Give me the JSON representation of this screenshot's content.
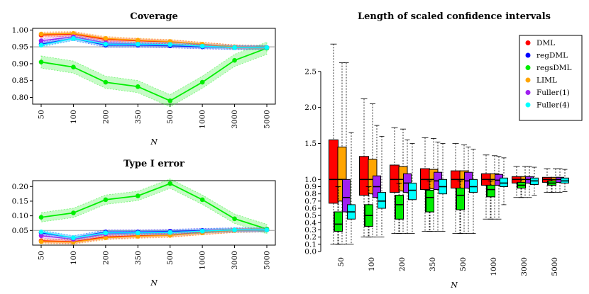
{
  "chart_data": [
    {
      "type": "line",
      "title": "Coverage",
      "xlabel": "N",
      "x": [
        "50",
        "100",
        "200",
        "350",
        "500",
        "1000",
        "3000",
        "5000"
      ],
      "ylim": [
        0.78,
        1.005
      ],
      "yticks": [
        "0.80",
        "0.85",
        "0.90",
        "0.95",
        "1.00"
      ],
      "reference_line": 0.95,
      "series": [
        {
          "color": "#ff0000",
          "values": [
            0.985,
            0.988,
            0.972,
            0.968,
            0.965,
            0.957,
            0.95,
            0.948
          ]
        },
        {
          "color": "#0000ff",
          "values": [
            0.958,
            0.975,
            0.955,
            0.955,
            0.953,
            0.95,
            0.948,
            0.948
          ]
        },
        {
          "color": "#00ee00",
          "values": [
            0.905,
            0.89,
            0.845,
            0.832,
            0.79,
            0.845,
            0.91,
            0.946
          ]
        },
        {
          "color": "#ffa500",
          "values": [
            0.988,
            0.99,
            0.975,
            0.97,
            0.966,
            0.958,
            0.95,
            0.948
          ]
        },
        {
          "color": "#a020f0",
          "values": [
            0.968,
            0.98,
            0.962,
            0.958,
            0.957,
            0.952,
            0.948,
            0.948
          ]
        },
        {
          "color": "#00ffff",
          "values": [
            0.955,
            0.975,
            0.958,
            0.958,
            0.957,
            0.952,
            0.948,
            0.948
          ]
        }
      ]
    },
    {
      "type": "line",
      "title": "Type I error",
      "xlabel": "N",
      "x": [
        "50",
        "100",
        "200",
        "350",
        "500",
        "1000",
        "3000",
        "5000"
      ],
      "ylim": [
        0.0,
        0.22
      ],
      "yticks": [
        "0.05",
        "0.10",
        "0.15",
        "0.20"
      ],
      "reference_line": 0.05,
      "series": [
        {
          "color": "#ff0000",
          "values": [
            0.015,
            0.012,
            0.028,
            0.032,
            0.035,
            0.043,
            0.05,
            0.052
          ]
        },
        {
          "color": "#0000ff",
          "values": [
            0.042,
            0.025,
            0.045,
            0.045,
            0.047,
            0.05,
            0.052,
            0.052
          ]
        },
        {
          "color": "#00ee00",
          "values": [
            0.095,
            0.11,
            0.155,
            0.168,
            0.21,
            0.155,
            0.09,
            0.055
          ]
        },
        {
          "color": "#ffa500",
          "values": [
            0.012,
            0.01,
            0.025,
            0.03,
            0.033,
            0.042,
            0.05,
            0.052
          ]
        },
        {
          "color": "#a020f0",
          "values": [
            0.032,
            0.02,
            0.038,
            0.042,
            0.043,
            0.048,
            0.052,
            0.052
          ]
        },
        {
          "color": "#00ffff",
          "values": [
            0.045,
            0.025,
            0.042,
            0.042,
            0.043,
            0.048,
            0.052,
            0.052
          ]
        }
      ]
    },
    {
      "type": "box",
      "title": "Length of scaled confidence intervals",
      "xlabel": "N",
      "categories": [
        "50",
        "100",
        "200",
        "350",
        "500",
        "1000",
        "3000",
        "5000"
      ],
      "ylim": [
        0.0,
        3.0
      ],
      "yticks_major": [
        "0.0",
        "0.1",
        "0.2",
        "0.3",
        "0.4",
        "0.5",
        "0.6",
        "0.7",
        "0.8",
        "0.9",
        "1.0",
        "1.5",
        "2.0",
        "2.5"
      ],
      "legend": {
        "position": "top-right",
        "entries": [
          {
            "label": "DML",
            "color": "#ff0000"
          },
          {
            "label": "regDML",
            "color": "#0000ff"
          },
          {
            "label": "regsDML",
            "color": "#00ee00"
          },
          {
            "label": "LIML",
            "color": "#ffa500"
          },
          {
            "label": "Fuller(1)",
            "color": "#a020f0"
          },
          {
            "label": "Fuller(4)",
            "color": "#00ffff"
          }
        ]
      },
      "series_order": [
        "DML",
        "LIML",
        "regDML",
        "regsDML",
        "Fuller(1)",
        "Fuller(4)"
      ],
      "boxes": [
        {
          "N": "50",
          "stats": {
            "DML": [
              0.1,
              0.67,
              1.0,
              1.55,
              2.88
            ],
            "LIML": [
              0.1,
              0.7,
              1.0,
              1.45,
              2.62
            ],
            "regDML": [
              0.1,
              0.28,
              0.38,
              0.55,
              0.9
            ],
            "regsDML": [
              0.1,
              0.28,
              0.38,
              0.55,
              0.9
            ],
            "Fuller(1)": [
              0.1,
              0.55,
              0.75,
              1.0,
              2.62
            ],
            "Fuller(4)": [
              0.1,
              0.45,
              0.55,
              0.65,
              1.65
            ]
          }
        },
        {
          "N": "100",
          "stats": {
            "DML": [
              0.2,
              0.78,
              1.0,
              1.32,
              2.12
            ],
            "LIML": [
              0.2,
              0.8,
              1.0,
              1.28,
              2.05
            ],
            "regDML": [
              0.2,
              0.35,
              0.5,
              0.65,
              0.9
            ],
            "regsDML": [
              0.2,
              0.35,
              0.5,
              0.65,
              0.9
            ],
            "Fuller(1)": [
              0.2,
              0.75,
              0.9,
              1.05,
              1.75
            ],
            "Fuller(4)": [
              0.2,
              0.6,
              0.7,
              0.82,
              1.6
            ]
          }
        },
        {
          "N": "200",
          "stats": {
            "DML": [
              0.25,
              0.82,
              1.0,
              1.2,
              1.72
            ],
            "LIML": [
              0.25,
              0.84,
              1.0,
              1.18,
              1.7
            ],
            "regDML": [
              0.25,
              0.45,
              0.65,
              0.78,
              0.95
            ],
            "regsDML": [
              0.25,
              0.45,
              0.65,
              0.78,
              0.95
            ],
            "Fuller(1)": [
              0.25,
              0.82,
              0.95,
              1.08,
              1.55
            ],
            "Fuller(4)": [
              0.25,
              0.72,
              0.85,
              0.95,
              1.5
            ]
          }
        },
        {
          "N": "350",
          "stats": {
            "DML": [
              0.28,
              0.86,
              1.0,
              1.15,
              1.58
            ],
            "LIML": [
              0.28,
              0.87,
              1.0,
              1.14,
              1.57
            ],
            "regDML": [
              0.28,
              0.55,
              0.75,
              0.85,
              0.98
            ],
            "regsDML": [
              0.28,
              0.55,
              0.75,
              0.85,
              0.98
            ],
            "Fuller(1)": [
              0.28,
              0.86,
              0.98,
              1.1,
              1.52
            ],
            "Fuller(4)": [
              0.28,
              0.8,
              0.9,
              1.0,
              1.5
            ]
          }
        },
        {
          "N": "500",
          "stats": {
            "DML": [
              0.25,
              0.88,
              1.0,
              1.12,
              1.5
            ],
            "LIML": [
              0.25,
              0.88,
              1.0,
              1.12,
              1.48
            ],
            "regDML": [
              0.25,
              0.58,
              0.78,
              0.88,
              0.98
            ],
            "regsDML": [
              0.25,
              0.58,
              0.78,
              0.88,
              0.98
            ],
            "Fuller(1)": [
              0.25,
              0.88,
              0.98,
              1.1,
              1.45
            ],
            "Fuller(4)": [
              0.25,
              0.82,
              0.9,
              1.0,
              1.42
            ]
          }
        },
        {
          "N": "1000",
          "stats": {
            "DML": [
              0.45,
              0.92,
              1.0,
              1.08,
              1.34
            ],
            "LIML": [
              0.45,
              0.92,
              1.0,
              1.08,
              1.33
            ],
            "regDML": [
              0.45,
              0.76,
              0.86,
              0.92,
              0.98
            ],
            "regsDML": [
              0.45,
              0.76,
              0.86,
              0.92,
              0.98
            ],
            "Fuller(1)": [
              0.45,
              0.92,
              0.99,
              1.07,
              1.32
            ],
            "Fuller(4)": [
              0.65,
              0.9,
              0.95,
              1.02,
              1.3
            ]
          }
        },
        {
          "N": "3000",
          "stats": {
            "DML": [
              0.75,
              0.95,
              1.0,
              1.04,
              1.18
            ],
            "LIML": [
              0.75,
              0.95,
              1.0,
              1.04,
              1.18
            ],
            "regDML": [
              0.75,
              0.88,
              0.92,
              0.96,
              1.0
            ],
            "regsDML": [
              0.75,
              0.88,
              0.92,
              0.96,
              1.0
            ],
            "Fuller(1)": [
              0.75,
              0.95,
              1.0,
              1.04,
              1.18
            ],
            "Fuller(4)": [
              0.78,
              0.93,
              0.98,
              1.02,
              1.17
            ]
          }
        },
        {
          "N": "5000",
          "stats": {
            "DML": [
              0.82,
              0.96,
              1.0,
              1.03,
              1.15
            ],
            "LIML": [
              0.82,
              0.96,
              1.0,
              1.03,
              1.15
            ],
            "regDML": [
              0.82,
              0.92,
              0.95,
              0.98,
              1.0
            ],
            "regsDML": [
              0.82,
              0.92,
              0.95,
              0.98,
              1.0
            ],
            "Fuller(1)": [
              0.82,
              0.96,
              1.0,
              1.03,
              1.15
            ],
            "Fuller(4)": [
              0.83,
              0.95,
              0.98,
              1.02,
              1.14
            ]
          }
        }
      ]
    }
  ]
}
